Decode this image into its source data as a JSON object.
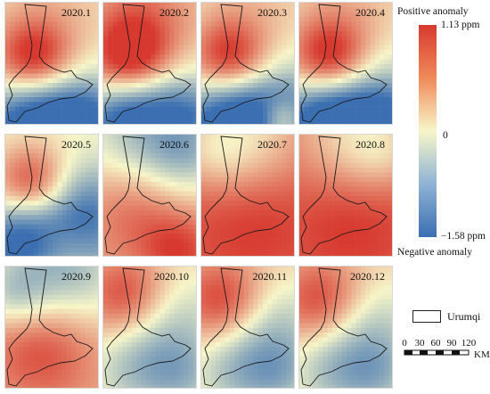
{
  "legend": {
    "positive_label": "Positive anomaly",
    "negative_label": "Negative anomaly",
    "max_label": "1.13 ppm",
    "mid_label": "0",
    "min_label": "−1.58 ppm",
    "max_value": 1.13,
    "min_value": -1.58,
    "colors": {
      "high": "#d7392e",
      "mid": "#f7f6c9",
      "low": "#3b6fb1"
    }
  },
  "region": {
    "label": "Urumqi"
  },
  "scale_bar": {
    "ticks": [
      "0",
      "30",
      "60",
      "90",
      "120"
    ],
    "unit": "KM"
  },
  "panels": [
    {
      "month": "2020.1"
    },
    {
      "month": "2020.2"
    },
    {
      "month": "2020.3"
    },
    {
      "month": "2020.4"
    },
    {
      "month": "2020.5"
    },
    {
      "month": "2020.6"
    },
    {
      "month": "2020.7"
    },
    {
      "month": "2020.8"
    },
    {
      "month": "2020.9"
    },
    {
      "month": "2020.10"
    },
    {
      "month": "2020.11"
    },
    {
      "month": "2020.12"
    }
  ]
}
